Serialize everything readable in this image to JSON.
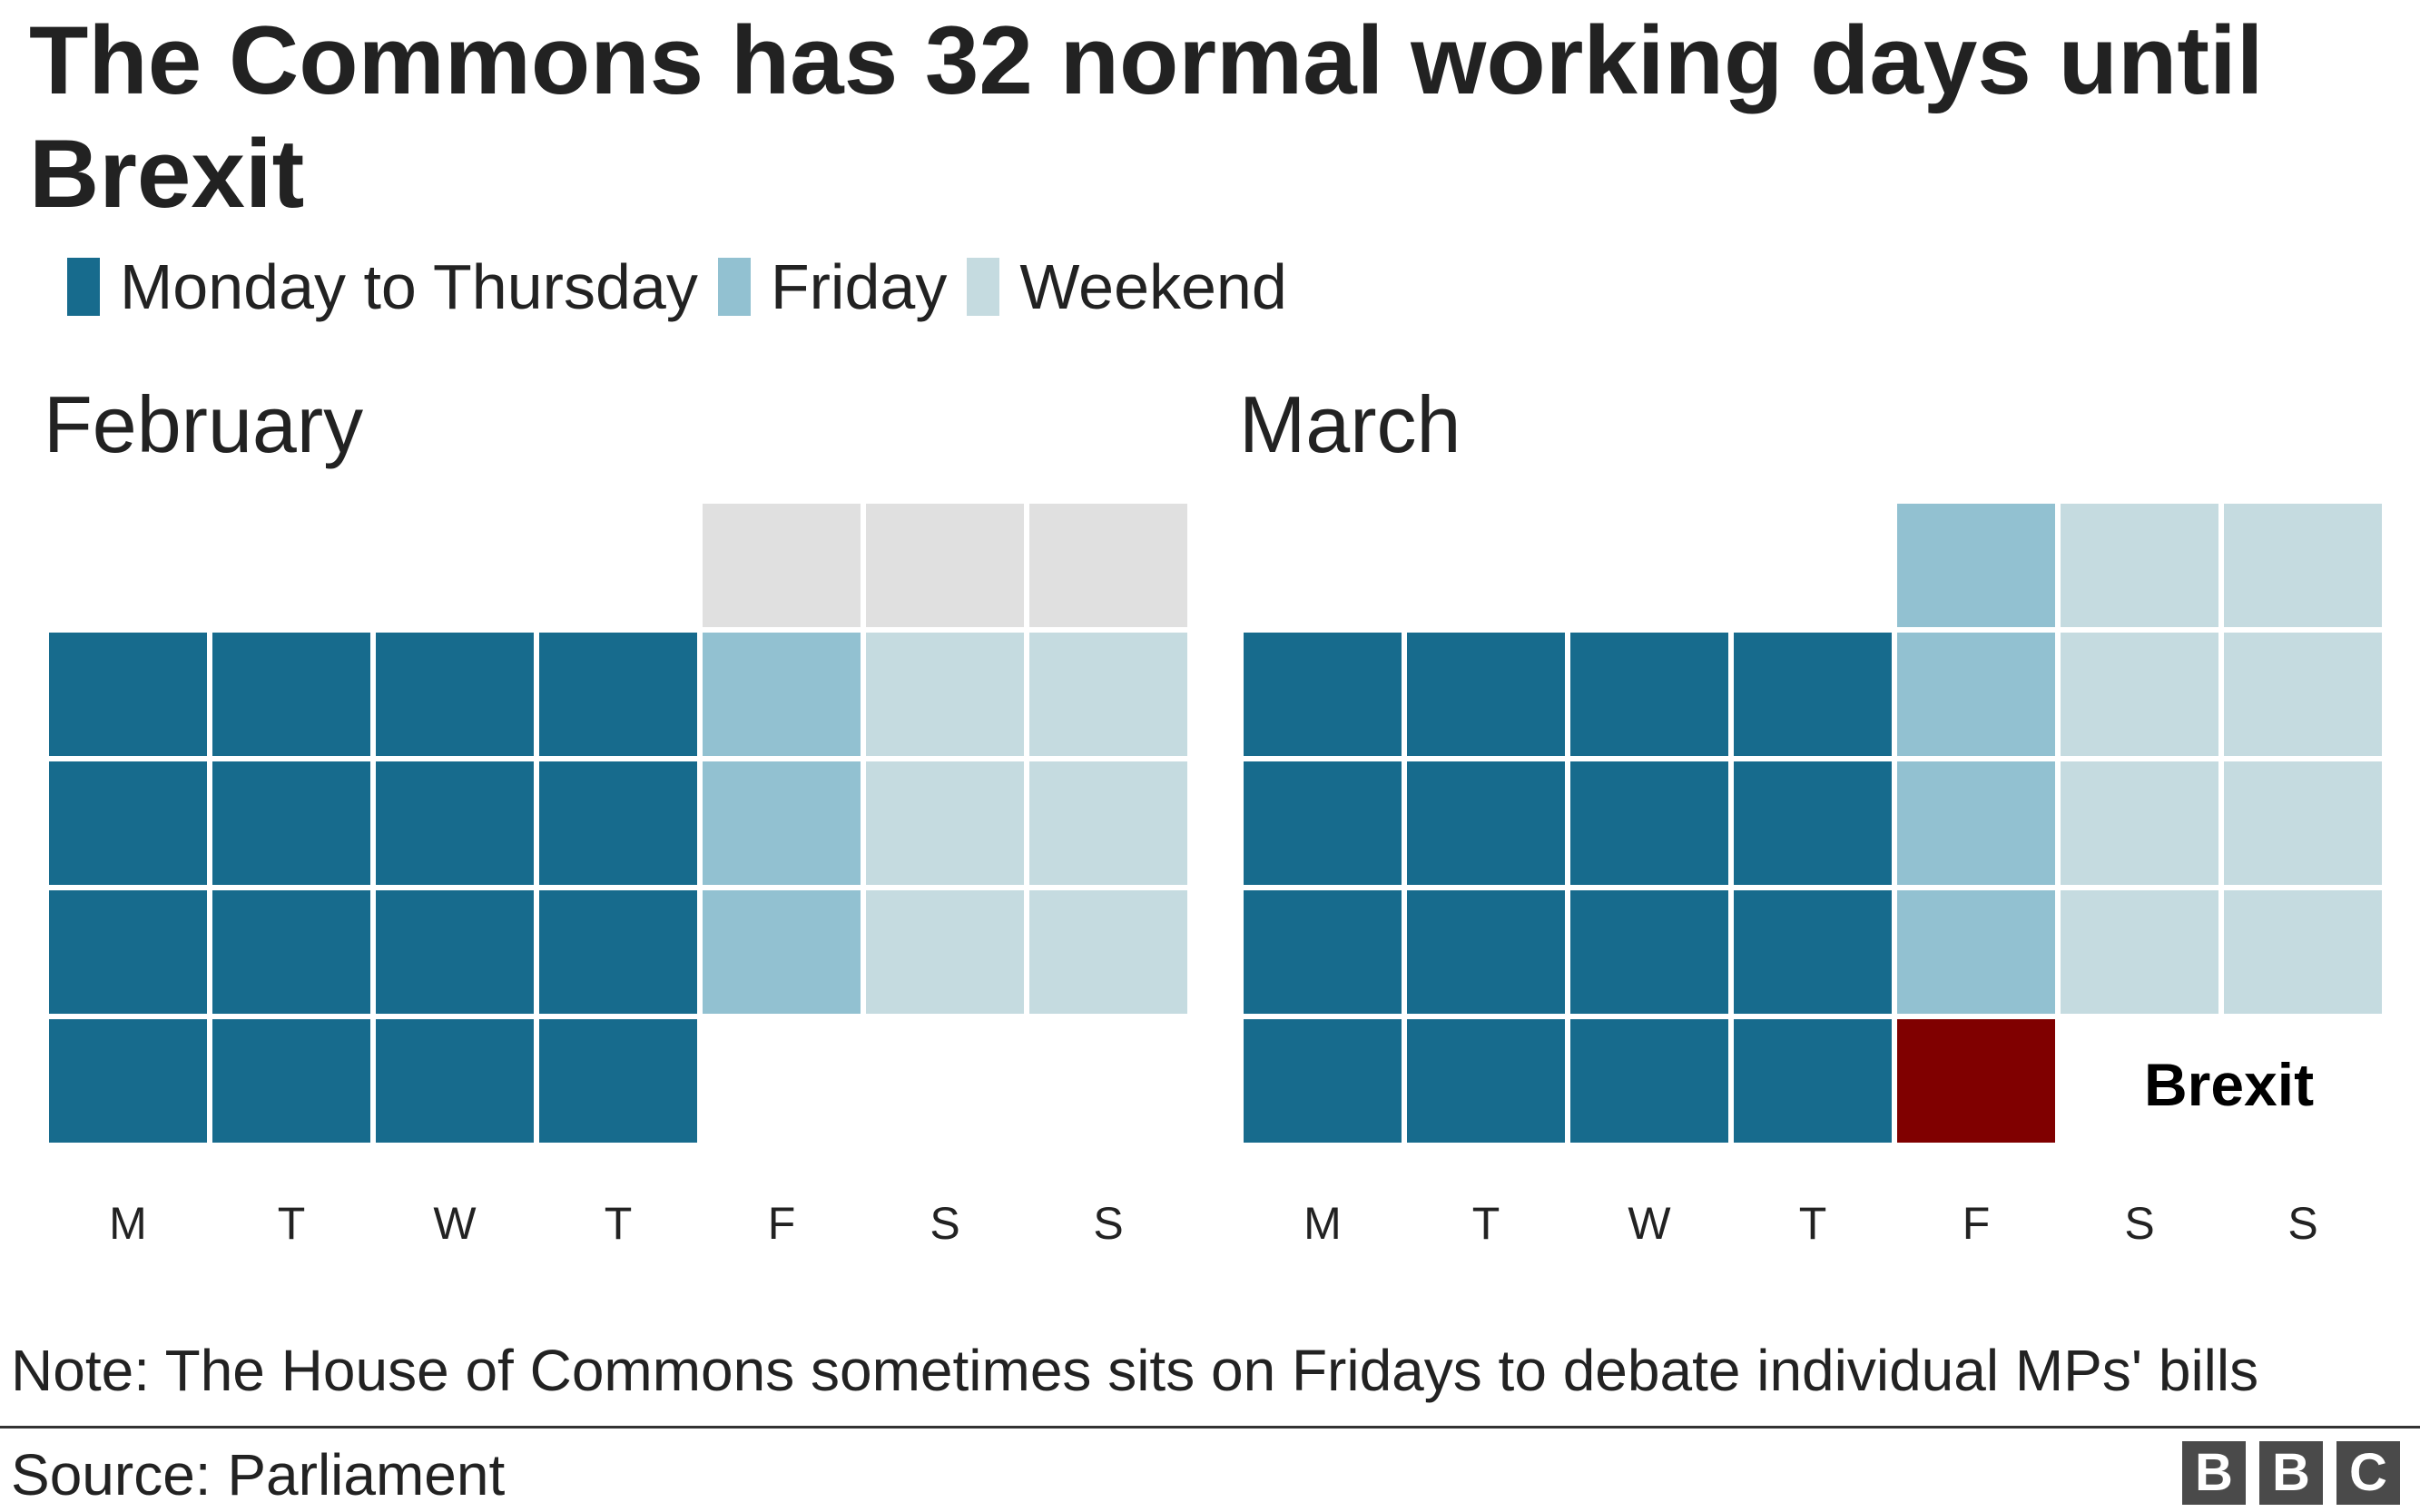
{
  "title": "The Commons has 32 normal working days until Brexit",
  "legend": [
    {
      "label": "Monday to Thursday",
      "color": "#176b8d"
    },
    {
      "label": "Friday",
      "color": "#92c1d1"
    },
    {
      "label": "Weekend",
      "color": "#c5dbe0"
    }
  ],
  "colors": {
    "weekday": "#176b8d",
    "friday": "#92c1d1",
    "weekend": "#c5dbe0",
    "past": "#e0e0e0",
    "brexit": "#800000"
  },
  "chart_data": {
    "type": "heatmap",
    "title": "The Commons has 32 normal working days until Brexit",
    "x_categories": [
      "M",
      "T",
      "W",
      "T",
      "F",
      "S",
      "S"
    ],
    "months": [
      {
        "name": "February",
        "rows": [
          [
            "",
            "",
            "",
            "",
            "past",
            "past",
            "past"
          ],
          [
            "weekday",
            "weekday",
            "weekday",
            "weekday",
            "friday",
            "weekend",
            "weekend"
          ],
          [
            "weekday",
            "weekday",
            "weekday",
            "weekday",
            "friday",
            "weekend",
            "weekend"
          ],
          [
            "weekday",
            "weekday",
            "weekday",
            "weekday",
            "friday",
            "weekend",
            "weekend"
          ],
          [
            "weekday",
            "weekday",
            "weekday",
            "weekday",
            "",
            "",
            ""
          ]
        ]
      },
      {
        "name": "March",
        "rows": [
          [
            "",
            "",
            "",
            "",
            "friday",
            "weekend",
            "weekend"
          ],
          [
            "weekday",
            "weekday",
            "weekday",
            "weekday",
            "friday",
            "weekend",
            "weekend"
          ],
          [
            "weekday",
            "weekday",
            "weekday",
            "weekday",
            "friday",
            "weekend",
            "weekend"
          ],
          [
            "weekday",
            "weekday",
            "weekday",
            "weekday",
            "friday",
            "weekend",
            "weekend"
          ],
          [
            "weekday",
            "weekday",
            "weekday",
            "weekday",
            "brexit",
            "",
            ""
          ]
        ]
      }
    ],
    "annotation": "Brexit"
  },
  "note": "Note: The House of Commons sometimes sits on Fridays to debate individual MPs' bills",
  "source": "Source: Parliament",
  "logo": [
    "B",
    "B",
    "C"
  ]
}
